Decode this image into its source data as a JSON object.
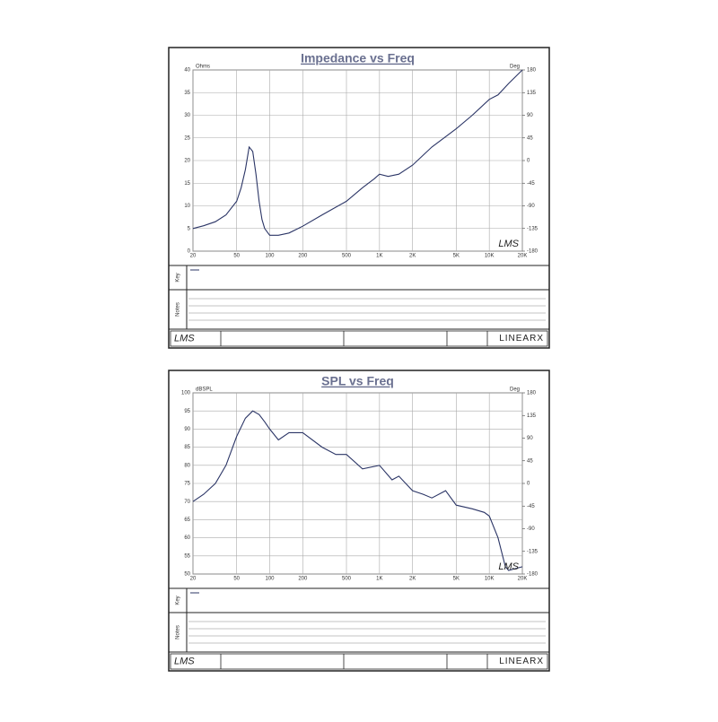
{
  "chart_data": [
    {
      "type": "line",
      "title": "Impedance vs Freq",
      "ylabel": "Ohms",
      "y2label": "Deg",
      "color": "#2b3566",
      "x": [
        20,
        25,
        32,
        40,
        50,
        55,
        60,
        65,
        70,
        75,
        80,
        85,
        90,
        100,
        120,
        150,
        200,
        300,
        500,
        700,
        900,
        1000,
        1200,
        1500,
        2000,
        3000,
        5000,
        7000,
        10000,
        12000,
        15000,
        20000
      ],
      "values": [
        5,
        5.6,
        6.5,
        8,
        11,
        14,
        18,
        23,
        22,
        17,
        11,
        7,
        5,
        3.5,
        3.5,
        4,
        5.5,
        8,
        11,
        14,
        16,
        17,
        16.5,
        17,
        19,
        23,
        27,
        30,
        33.5,
        34.5,
        37,
        40
      ],
      "xlim": [
        20,
        20000
      ],
      "xticks": [
        20,
        50,
        100,
        200,
        500,
        {
          "value": 1000,
          "label": "1K"
        },
        {
          "value": 2000,
          "label": "2K"
        },
        {
          "value": 5000,
          "label": "5K"
        },
        {
          "value": 10000,
          "label": "10K"
        },
        {
          "value": 20000,
          "label": "20K"
        }
      ],
      "log_x": true,
      "ylim": [
        0,
        40
      ],
      "yticks": [
        0,
        5,
        10,
        15,
        20,
        25,
        30,
        35,
        40
      ],
      "y2lim": [
        -180,
        180
      ],
      "y2ticks": [
        -180,
        -135,
        -90,
        -45,
        0,
        45,
        90,
        135,
        180
      ],
      "grid": true
    },
    {
      "type": "line",
      "title": "SPL vs Freq",
      "ylabel": "dBSPL",
      "y2label": "Deg",
      "color": "#2b3566",
      "x": [
        20,
        25,
        32,
        40,
        50,
        60,
        70,
        80,
        90,
        100,
        120,
        150,
        200,
        300,
        400,
        500,
        700,
        1000,
        1300,
        1500,
        2000,
        2500,
        3000,
        4000,
        5000,
        7000,
        9000,
        10000,
        12000,
        14000,
        15000,
        20000
      ],
      "values": [
        70,
        72,
        75,
        80,
        88,
        93,
        95,
        94,
        92,
        90,
        87,
        89,
        89,
        85,
        83,
        83,
        79,
        80,
        76,
        77,
        73,
        72,
        71,
        73,
        69,
        68,
        67,
        66,
        60,
        52,
        51,
        52
      ],
      "xlim": [
        20,
        20000
      ],
      "xticks": [
        20,
        50,
        100,
        200,
        500,
        {
          "value": 1000,
          "label": "1K"
        },
        {
          "value": 2000,
          "label": "2K"
        },
        {
          "value": 5000,
          "label": "5K"
        },
        {
          "value": 10000,
          "label": "10K"
        },
        {
          "value": 20000,
          "label": "20K"
        }
      ],
      "log_x": true,
      "ylim": [
        50,
        100
      ],
      "yticks": [
        50,
        55,
        60,
        65,
        70,
        75,
        80,
        85,
        90,
        95,
        100
      ],
      "y2lim": [
        -180,
        180
      ],
      "y2ticks": [
        -180,
        -135,
        -90,
        -45,
        0,
        45,
        90,
        135,
        180
      ],
      "grid": true
    }
  ],
  "labels": {
    "key": "Key",
    "notes": "Notes"
  },
  "footer": {
    "logo": "LMS",
    "brand": "LINEARX"
  }
}
